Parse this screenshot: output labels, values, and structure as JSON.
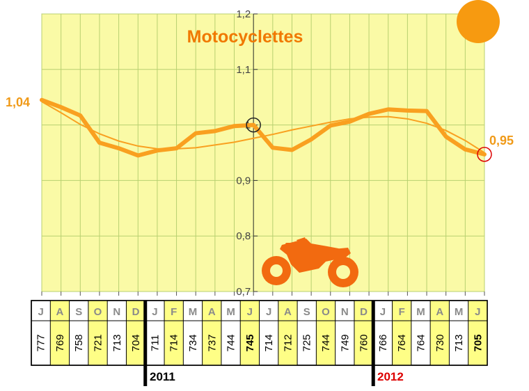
{
  "chart_data": {
    "type": "line",
    "title": "Motocyclettes",
    "categories": [
      "J",
      "A",
      "S",
      "O",
      "N",
      "D",
      "J",
      "F",
      "M",
      "A",
      "M",
      "J",
      "J",
      "A",
      "S",
      "O",
      "N",
      "D",
      "J",
      "F",
      "M",
      "A",
      "M",
      "J"
    ],
    "series": [
      {
        "values": [
          1.045,
          1.032,
          1.017,
          0.968,
          0.958,
          0.945,
          0.954,
          0.958,
          0.985,
          0.989,
          0.998,
          1.0,
          0.959,
          0.955,
          0.974,
          0.999,
          1.006,
          1.02,
          1.028,
          1.026,
          1.025,
          0.979,
          0.956,
          0.947
        ]
      }
    ],
    "trend": [
      1.042,
      1.022,
      1.001,
      0.984,
      0.971,
      0.962,
      0.957,
      0.957,
      0.959,
      0.964,
      0.969,
      0.976,
      0.983,
      0.991,
      0.998,
      1.005,
      1.011,
      1.014,
      1.015,
      1.011,
      1.003,
      0.99,
      0.972,
      0.95
    ],
    "ylim": [
      0.7,
      1.2
    ],
    "yticks": [
      "0,7",
      "0,8",
      "0,9",
      "1",
      "1,1",
      "1,2"
    ],
    "start_label": "1,04",
    "end_label": "0,95",
    "table_values": [
      "777",
      "769",
      "758",
      "721",
      "713",
      "704",
      "711",
      "714",
      "734",
      "737",
      "744",
      "745",
      "714",
      "712",
      "725",
      "744",
      "749",
      "760",
      "766",
      "764",
      "764",
      "730",
      "713",
      "705"
    ],
    "years": [
      "2011",
      "2012"
    ],
    "colors": {
      "plot_bg": "#fafaa6",
      "grid": "#b8d070",
      "line": "#f9a020",
      "title": "#f07800",
      "sun": "#f79a10",
      "moto": "#f26a10",
      "highlight_cell": "#fefe86",
      "last_month": "#e00000"
    }
  }
}
